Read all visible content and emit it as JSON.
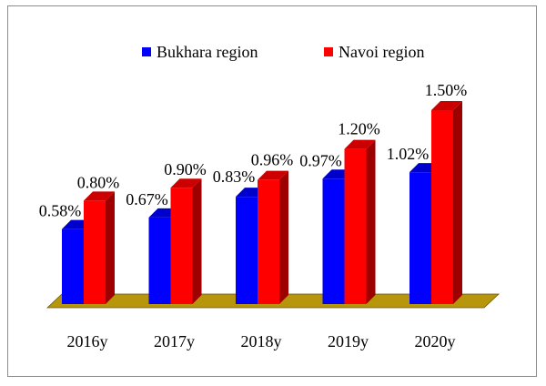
{
  "chart_data": {
    "type": "bar",
    "categories": [
      "2016y",
      "2017y",
      "2018y",
      "2019y",
      "2020y"
    ],
    "series": [
      {
        "name": "Bukhara region",
        "color": "#0000ff",
        "values": [
          0.58,
          0.67,
          0.83,
          0.97,
          1.02
        ],
        "labels": [
          "0.58%",
          "0.67%",
          "0.83%",
          "0.97%",
          "1.02%"
        ]
      },
      {
        "name": "Navoi region",
        "color": "#ff0000",
        "values": [
          0.8,
          0.9,
          0.96,
          1.2,
          1.5
        ],
        "labels": [
          "0.80%",
          "0.90%",
          "0.96%",
          "1.20%",
          "1.50%"
        ]
      }
    ],
    "ylim": [
      0,
      1.6
    ],
    "grid": false,
    "legend_position": "top",
    "floor_color": "#b8960b"
  }
}
